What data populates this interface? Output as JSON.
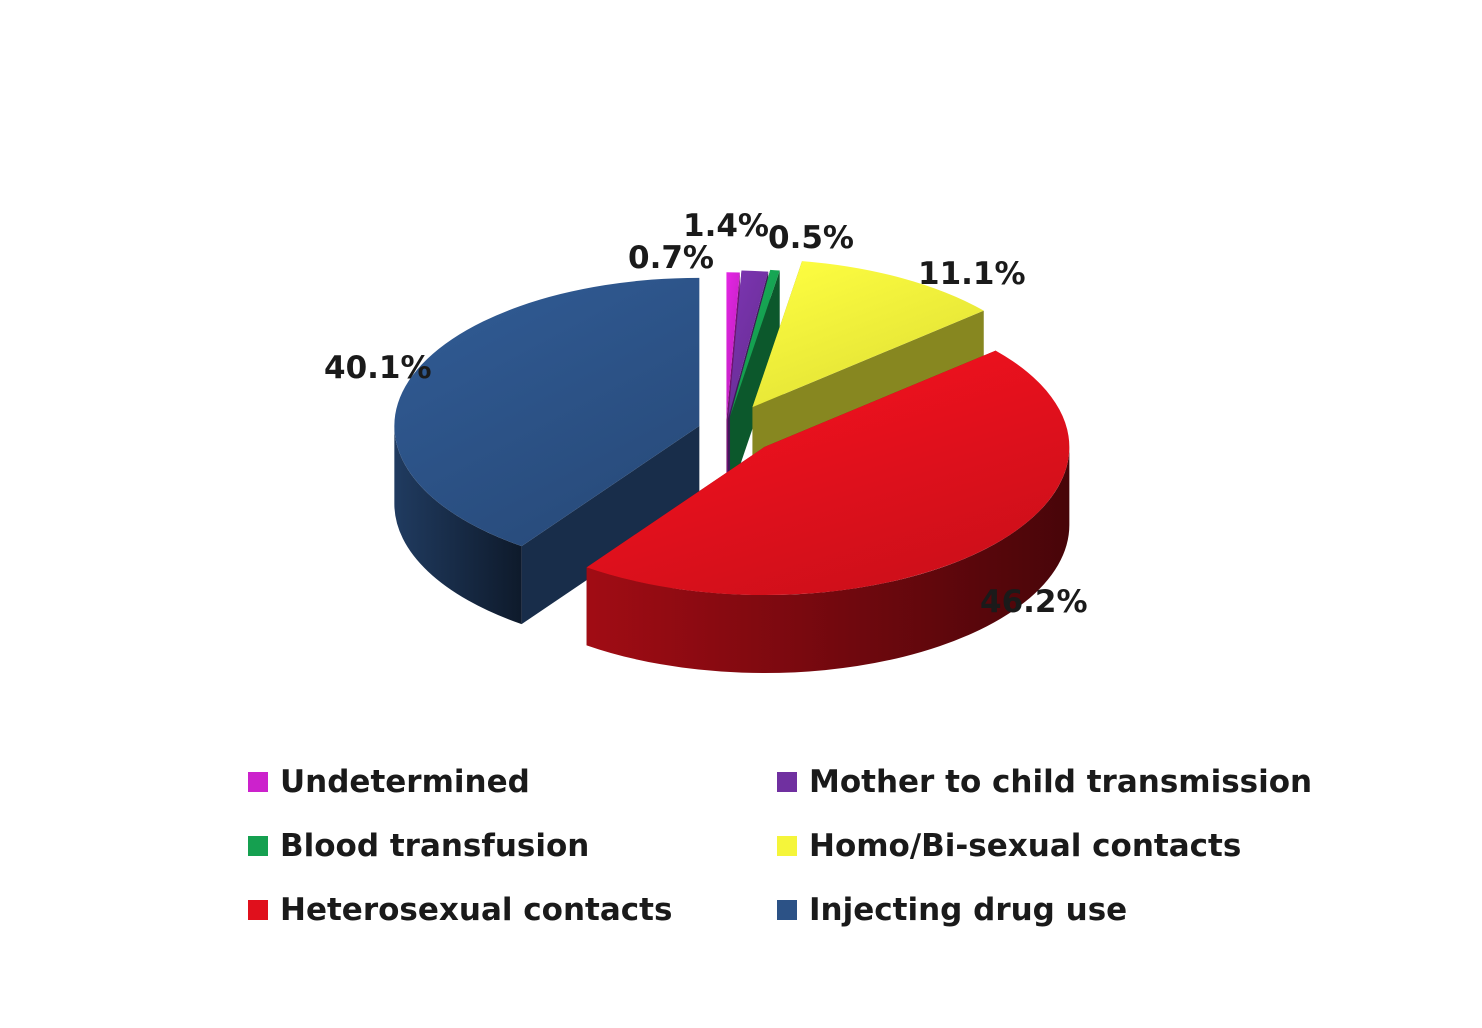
{
  "chart_data": {
    "type": "pie",
    "style": "3d-exploded",
    "start_position": "top",
    "direction": "clockwise",
    "slices": [
      {
        "name": "Undetermined",
        "value": 0.7,
        "label": "0.7%",
        "color": "#cc22cc"
      },
      {
        "name": "Mother to child transmission",
        "value": 1.4,
        "label": "1.4%",
        "color": "#7030a0"
      },
      {
        "name": "Blood transfusion",
        "value": 0.5,
        "label": "0.5%",
        "color": "#15a050"
      },
      {
        "name": "Homo/Bi-sexual contacts",
        "value": 11.1,
        "label": "11.1%",
        "color": "#f5f53a"
      },
      {
        "name": "Heterosexual contacts",
        "value": 46.2,
        "label": "46.2%",
        "color": "#e0101c"
      },
      {
        "name": "Injecting drug use",
        "value": 40.1,
        "label": "40.1%",
        "color": "#2c5286"
      }
    ],
    "legend": {
      "position": "bottom",
      "columns": 2,
      "items": [
        {
          "label": "Undetermined",
          "color": "#cc22cc"
        },
        {
          "label": "Mother to child transmission",
          "color": "#7030a0"
        },
        {
          "label": "Blood transfusion",
          "color": "#15a050"
        },
        {
          "label": "Homo/Bi-sexual contacts",
          "color": "#f5f53a"
        },
        {
          "label": "Heterosexual contacts",
          "color": "#e0101c"
        },
        {
          "label": "Injecting drug use",
          "color": "#2c5286"
        }
      ]
    }
  }
}
